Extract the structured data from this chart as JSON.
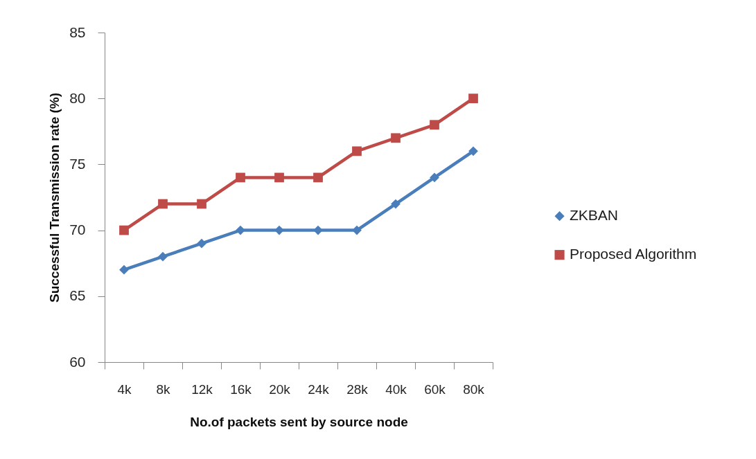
{
  "chart_data": {
    "type": "line",
    "xlabel": "No.of packets sent by source node",
    "ylabel": "Successful Transmission rate (%)",
    "categories": [
      "4k",
      "8k",
      "12k",
      "16k",
      "20k",
      "24k",
      "28k",
      "40k",
      "60k",
      "80k"
    ],
    "series": [
      {
        "name": "ZKBAN",
        "color": "#4a7ebb",
        "marker": "diamond",
        "values": [
          67,
          68,
          69,
          70,
          70,
          70,
          70,
          72,
          74,
          76
        ]
      },
      {
        "name": "Proposed Algorithm",
        "color": "#be4b48",
        "marker": "square",
        "values": [
          70,
          72,
          72,
          74,
          74,
          74,
          76,
          77,
          78,
          80
        ]
      }
    ],
    "ylim": [
      60,
      85
    ],
    "yticks": [
      60,
      65,
      70,
      75,
      80,
      85
    ],
    "grid": false,
    "legend": "right",
    "line_style": "solid"
  }
}
